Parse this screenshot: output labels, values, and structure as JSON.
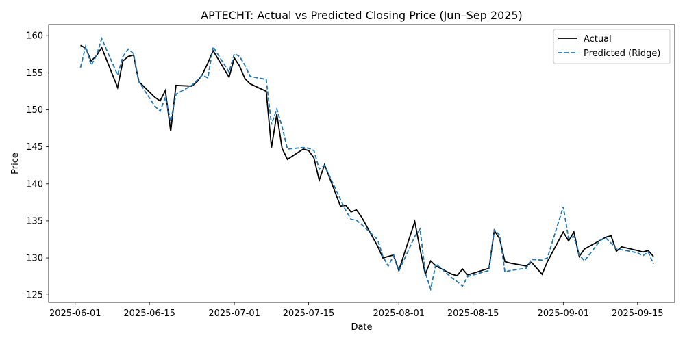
{
  "chart_data": {
    "type": "line",
    "title": "APTECHT: Actual vs Predicted Closing Price (Jun–Sep 2025)",
    "xlabel": "Date",
    "ylabel": "Price",
    "x_ticks": [
      "2025-06-01",
      "2025-06-15",
      "2025-07-01",
      "2025-07-15",
      "2025-08-01",
      "2025-08-15",
      "2025-09-01",
      "2025-09-15"
    ],
    "y_ticks": [
      125,
      130,
      135,
      140,
      145,
      150,
      155,
      160
    ],
    "xlim": [
      "2025-05-27",
      "2025-09-22"
    ],
    "ylim": [
      124.0,
      161.5
    ],
    "legend_position": "top-right",
    "grid": false,
    "x": [
      "2025-06-02",
      "2025-06-03",
      "2025-06-04",
      "2025-06-05",
      "2025-06-06",
      "2025-06-09",
      "2025-06-10",
      "2025-06-11",
      "2025-06-12",
      "2025-06-13",
      "2025-06-16",
      "2025-06-17",
      "2025-06-18",
      "2025-06-19",
      "2025-06-20",
      "2025-06-23",
      "2025-06-24",
      "2025-06-25",
      "2025-06-26",
      "2025-06-27",
      "2025-06-30",
      "2025-07-01",
      "2025-07-02",
      "2025-07-03",
      "2025-07-04",
      "2025-07-07",
      "2025-07-08",
      "2025-07-09",
      "2025-07-10",
      "2025-07-11",
      "2025-07-14",
      "2025-07-15",
      "2025-07-16",
      "2025-07-17",
      "2025-07-18",
      "2025-07-21",
      "2025-07-22",
      "2025-07-23",
      "2025-07-24",
      "2025-07-25",
      "2025-07-28",
      "2025-07-29",
      "2025-07-30",
      "2025-07-31",
      "2025-08-01",
      "2025-08-04",
      "2025-08-05",
      "2025-08-06",
      "2025-08-07",
      "2025-08-08",
      "2025-08-11",
      "2025-08-12",
      "2025-08-13",
      "2025-08-14",
      "2025-08-18",
      "2025-08-19",
      "2025-08-20",
      "2025-08-21",
      "2025-08-22",
      "2025-08-25",
      "2025-08-26",
      "2025-08-28",
      "2025-08-29",
      "2025-09-01",
      "2025-09-02",
      "2025-09-03",
      "2025-09-04",
      "2025-09-05",
      "2025-09-08",
      "2025-09-09",
      "2025-09-10",
      "2025-09-11",
      "2025-09-12",
      "2025-09-15",
      "2025-09-16",
      "2025-09-17",
      "2025-09-18"
    ],
    "series": [
      {
        "name": "Actual",
        "color": "#000000",
        "dash": "solid",
        "values": [
          158.7,
          158.3,
          156.6,
          157.3,
          158.4,
          153.0,
          156.6,
          157.2,
          157.4,
          153.8,
          151.7,
          151.2,
          152.6,
          147.1,
          153.3,
          153.2,
          153.8,
          154.8,
          156.3,
          158.0,
          154.4,
          157.0,
          155.9,
          154.2,
          153.5,
          152.5,
          144.9,
          149.4,
          144.8,
          143.3,
          144.7,
          144.5,
          143.5,
          140.5,
          142.6,
          137.0,
          137.1,
          136.2,
          136.5,
          135.5,
          131.6,
          130.0,
          130.2,
          130.4,
          128.3,
          134.9,
          131.2,
          127.8,
          129.6,
          128.9,
          127.8,
          127.6,
          128.5,
          127.7,
          128.6,
          133.7,
          132.6,
          129.5,
          129.3,
          128.9,
          129.4,
          127.8,
          129.5,
          133.5,
          132.3,
          133.5,
          130.2,
          131.2,
          132.4,
          132.8,
          133.0,
          130.9,
          131.5,
          131.0,
          130.8,
          131.0,
          130.2
        ]
      },
      {
        "name": "Predicted (Ridge)",
        "color": "#1f77b4",
        "dash": "dashed",
        "values": [
          155.7,
          158.6,
          156.0,
          157.3,
          159.6,
          154.7,
          157.2,
          158.2,
          157.6,
          153.8,
          150.5,
          149.8,
          151.7,
          148.4,
          152.1,
          153.3,
          154.0,
          154.7,
          154.3,
          158.5,
          155.1,
          157.6,
          157.2,
          156.0,
          154.5,
          154.1,
          148.0,
          150.1,
          147.7,
          144.7,
          144.9,
          144.8,
          144.5,
          142.0,
          142.5,
          137.9,
          136.4,
          135.2,
          135.1,
          134.5,
          132.5,
          130.2,
          128.9,
          130.3,
          128.2,
          132.9,
          133.9,
          128.0,
          125.8,
          129.2,
          127.3,
          126.8,
          126.2,
          127.5,
          128.3,
          133.8,
          133.1,
          128.1,
          128.3,
          128.6,
          129.8,
          129.7,
          130.0,
          136.9,
          132.6,
          132.9,
          130.4,
          129.6,
          132.4,
          132.7,
          132.0,
          131.2,
          131.1,
          130.7,
          130.3,
          130.8,
          129.2
        ]
      }
    ]
  }
}
